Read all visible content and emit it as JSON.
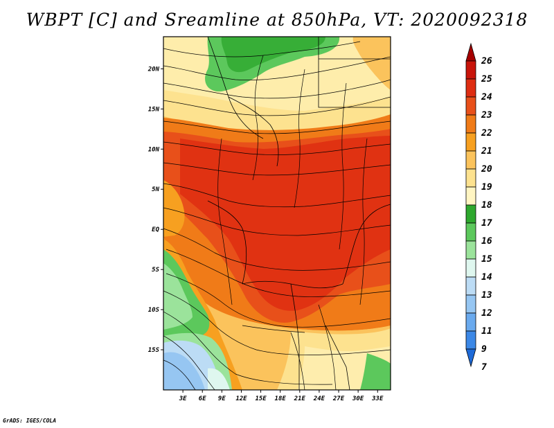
{
  "title": "WBPT [C] and Sreamline at 850hPa, VT: 2020092318",
  "credit": "GrADS: IGES/COLA",
  "map": {
    "lon_range": [
      0,
      35
    ],
    "lat_range": [
      -20,
      24
    ],
    "lon_ticks": [
      "3E",
      "6E",
      "9E",
      "12E",
      "15E",
      "18E",
      "21E",
      "24E",
      "27E",
      "30E",
      "33E"
    ],
    "lat_ticks": [
      "20N",
      "15N",
      "10N",
      "5N",
      "EQ",
      "5S",
      "10S",
      "15S"
    ],
    "lat_tick_values": [
      20,
      15,
      10,
      5,
      0,
      -5,
      -10,
      -15
    ],
    "lon_tick_values": [
      3,
      6,
      9,
      12,
      15,
      18,
      21,
      24,
      27,
      30,
      33
    ]
  },
  "colorbar": {
    "levels": [
      "26",
      "25",
      "24",
      "23",
      "22",
      "21",
      "20",
      "19",
      "18",
      "17",
      "16",
      "15",
      "14",
      "13",
      "12",
      "11",
      "9",
      "7"
    ],
    "colors": [
      "#a50000",
      "#c8140a",
      "#de2d12",
      "#e8501a",
      "#f07b18",
      "#f7a020",
      "#fbc35c",
      "#fde28f",
      "#fff5c2",
      "#2ea82e",
      "#5cc85c",
      "#9be39b",
      "#dff7ef",
      "#bcdcf5",
      "#96c6f2",
      "#6aaaee",
      "#3c88e6",
      "#1e6ad8"
    ]
  }
}
